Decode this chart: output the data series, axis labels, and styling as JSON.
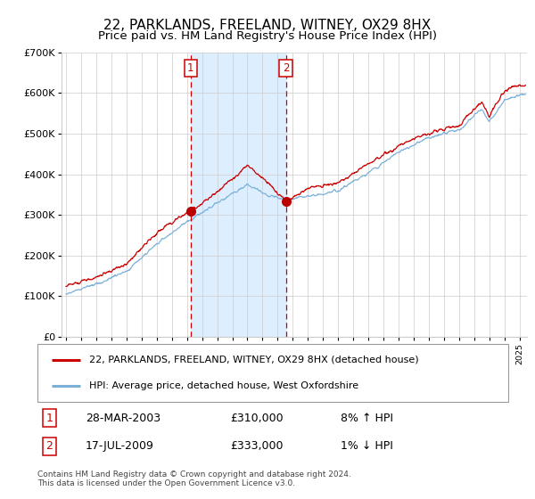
{
  "title": "22, PARKLANDS, FREELAND, WITNEY, OX29 8HX",
  "subtitle": "Price paid vs. HM Land Registry's House Price Index (HPI)",
  "ylim": [
    0,
    700000
  ],
  "yticks": [
    0,
    100000,
    200000,
    300000,
    400000,
    500000,
    600000,
    700000
  ],
  "ytick_labels": [
    "£0",
    "£100K",
    "£200K",
    "£300K",
    "£400K",
    "£500K",
    "£600K",
    "£700K"
  ],
  "sale1_year": 2003.24,
  "sale1_price": 310000,
  "sale2_year": 2009.54,
  "sale2_price": 333000,
  "vline_color": "#cc0000",
  "vshade_color": "#ddeeff",
  "marker_color": "#bb0000",
  "hpi_line_color": "#7ab0d8",
  "price_line_color": "#cc0000",
  "grid_color": "#cccccc",
  "legend_label_red": "22, PARKLANDS, FREELAND, WITNEY, OX29 8HX (detached house)",
  "legend_label_blue": "HPI: Average price, detached house, West Oxfordshire",
  "table_row1": [
    "1",
    "28-MAR-2003",
    "£310,000",
    "8% ↑ HPI"
  ],
  "table_row2": [
    "2",
    "17-JUL-2009",
    "£333,000",
    "1% ↓ HPI"
  ],
  "footnote": "Contains HM Land Registry data © Crown copyright and database right 2024.\nThis data is licensed under the Open Government Licence v3.0.",
  "xstart": 1994.7,
  "xend": 2025.5,
  "title_fontsize": 11,
  "subtitle_fontsize": 9.5
}
